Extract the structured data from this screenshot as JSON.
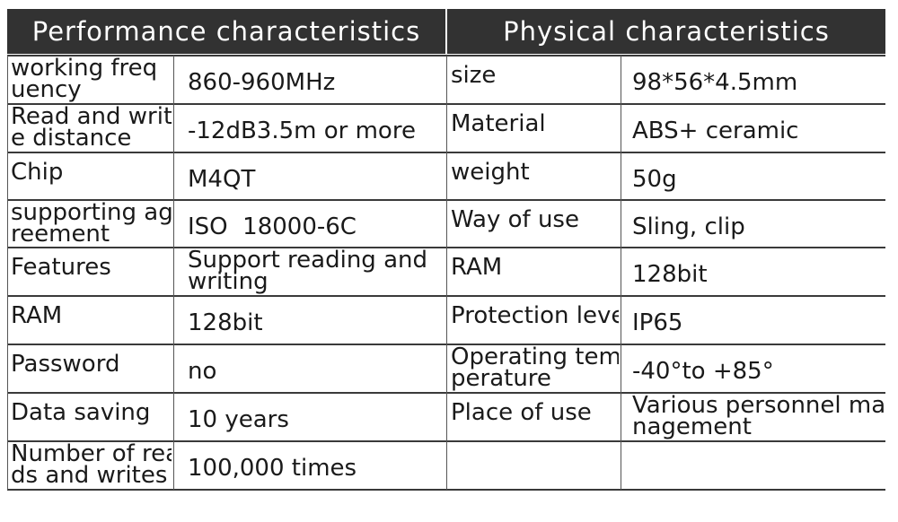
{
  "headers": {
    "performance": "Performance characteristics",
    "physical": "Physical characteristics"
  },
  "performance_rows": [
    {
      "label": "working freq\nuency",
      "value": "860-960MHz"
    },
    {
      "label": "Read and writ\ne distance",
      "value": "-12dB3.5m or more"
    },
    {
      "label": "Chip",
      "value": "M4QT"
    },
    {
      "label": "supporting ag\nreement",
      "value": "ISO  18000-6C"
    },
    {
      "label": "Features",
      "value": "Support reading and\nwriting"
    },
    {
      "label": "RAM",
      "value": "128bit"
    },
    {
      "label": "Password",
      "value": "no"
    },
    {
      "label": "Data saving",
      "value": "10 years"
    },
    {
      "label": "Number of rea\nds and writes",
      "value": "100,000 times"
    }
  ],
  "physical_rows": [
    {
      "label": "size",
      "value": "98*56*4.5mm"
    },
    {
      "label": "Material",
      "value": "ABS+ ceramic"
    },
    {
      "label": "weight",
      "value": "50g"
    },
    {
      "label": "Way of use",
      "value": "Sling, clip"
    },
    {
      "label": "RAM",
      "value": "128bit"
    },
    {
      "label": "Protection level",
      "value": "IP65"
    },
    {
      "label": "Operating tem\nperature",
      "value": "-40°to +85°"
    },
    {
      "label": "Place of use",
      "value": "Various personnel ma\nnagement"
    },
    {
      "label": "",
      "value": ""
    }
  ]
}
